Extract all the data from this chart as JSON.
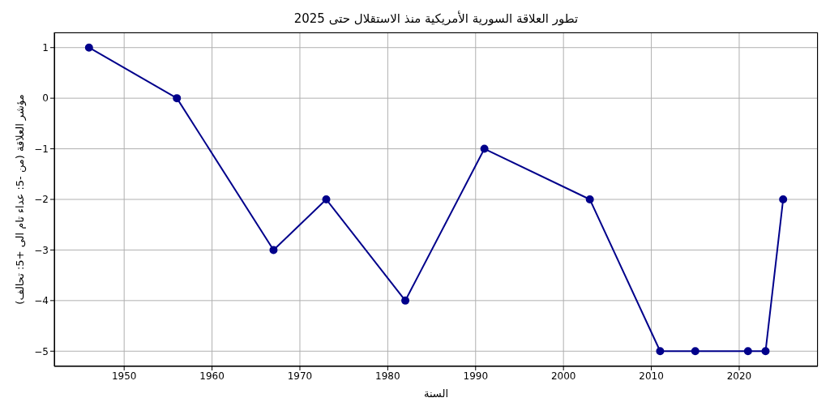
{
  "chart_data": {
    "type": "line",
    "title": "تطور العلاقة السورية الأمريكية منذ الاستقلال حتى 2025",
    "xlabel": "السنة",
    "ylabel": "مؤشر العلاقة (من -5: عداء تام الى +5: تحالف)",
    "x": [
      1946,
      1956,
      1967,
      1973,
      1982,
      1991,
      2003,
      2011,
      2015,
      2021,
      2023,
      2025
    ],
    "series": [
      {
        "color": "#00008b",
        "values": [
          1,
          0,
          -3,
          -2,
          -4,
          -1,
          -2,
          -5,
          -5,
          -5,
          -5,
          -2
        ]
      }
    ],
    "xlim": [
      1942.05,
      2028.95
    ],
    "xticks": [
      1950,
      1960,
      1970,
      1980,
      1990,
      2000,
      2010,
      2020
    ],
    "ylim": [
      -5.3,
      1.3
    ],
    "yticks": [
      {
        "value": -5,
        "label": "−5"
      },
      {
        "value": -4,
        "label": "−4"
      },
      {
        "value": -3,
        "label": "−3"
      },
      {
        "value": -2,
        "label": "−2"
      },
      {
        "value": -1,
        "label": "−1"
      },
      0,
      1
    ],
    "grid": true,
    "marker": "circle",
    "line_style": "solid",
    "legend": false
  }
}
